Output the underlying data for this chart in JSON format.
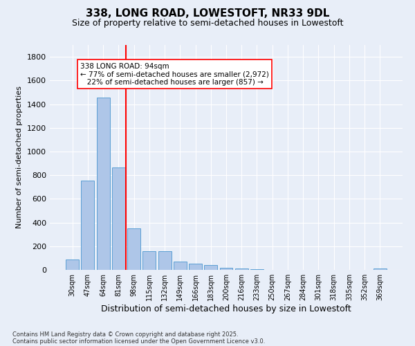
{
  "title1": "338, LONG ROAD, LOWESTOFT, NR33 9DL",
  "title2": "Size of property relative to semi-detached houses in Lowestoft",
  "xlabel": "Distribution of semi-detached houses by size in Lowestoft",
  "ylabel": "Number of semi-detached properties",
  "categories": [
    "30sqm",
    "47sqm",
    "64sqm",
    "81sqm",
    "98sqm",
    "115sqm",
    "132sqm",
    "149sqm",
    "166sqm",
    "183sqm",
    "200sqm",
    "216sqm",
    "233sqm",
    "250sqm",
    "267sqm",
    "284sqm",
    "301sqm",
    "318sqm",
    "335sqm",
    "352sqm",
    "369sqm"
  ],
  "values": [
    88,
    755,
    1455,
    868,
    350,
    155,
    155,
    72,
    55,
    42,
    18,
    10,
    5,
    2,
    2,
    1,
    1,
    0,
    0,
    0,
    12
  ],
  "bar_color": "#aec6e8",
  "bar_edge_color": "#5a9fd4",
  "vline_color": "red",
  "annotation_text": "338 LONG ROAD: 94sqm\n← 77% of semi-detached houses are smaller (2,972)\n   22% of semi-detached houses are larger (857) →",
  "annotation_box_color": "white",
  "annotation_box_edge_color": "red",
  "ylim": [
    0,
    1900
  ],
  "yticks": [
    0,
    200,
    400,
    600,
    800,
    1000,
    1200,
    1400,
    1600,
    1800
  ],
  "footnote1": "Contains HM Land Registry data © Crown copyright and database right 2025.",
  "footnote2": "Contains public sector information licensed under the Open Government Licence v3.0.",
  "bg_color": "#e8eef8",
  "grid_color": "#ffffff",
  "title1_fontsize": 11,
  "title2_fontsize": 9,
  "xlabel_fontsize": 9,
  "ylabel_fontsize": 8,
  "annot_fontsize": 7.5
}
